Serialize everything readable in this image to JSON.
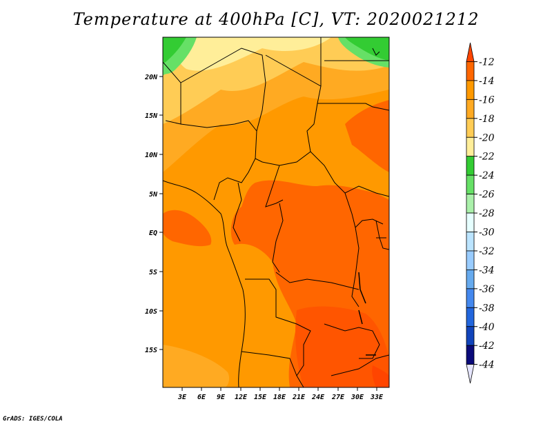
{
  "title": "Temperature at 400hPa [C], VT: 2020021212",
  "credit": "GrADS: IGES/COLA",
  "map": {
    "lat_ticks": [
      "20N",
      "15N",
      "10N",
      "5N",
      "EQ",
      "5S",
      "10S",
      "15S"
    ],
    "lon_ticks": [
      "3E",
      "6E",
      "9E",
      "12E",
      "15E",
      "18E",
      "21E",
      "24E",
      "27E",
      "30E",
      "33E"
    ]
  },
  "colorbar": {
    "levels": [
      "-12",
      "-14",
      "-16",
      "-18",
      "-20",
      "-22",
      "-24",
      "-26",
      "-28",
      "-30",
      "-32",
      "-34",
      "-36",
      "-38",
      "-40",
      "-42",
      "-44"
    ],
    "colors": [
      "#ff4500",
      "#ff6600",
      "#ff9900",
      "#ffaa22",
      "#ffcc55",
      "#ffee99",
      "#33cc33",
      "#66e066",
      "#aaf0aa",
      "#e6ffff",
      "#bbe4ff",
      "#99ccff",
      "#66aaee",
      "#4488ee",
      "#2266dd",
      "#1144bb",
      "#0a0a7a",
      "#e6e6ff"
    ]
  }
}
